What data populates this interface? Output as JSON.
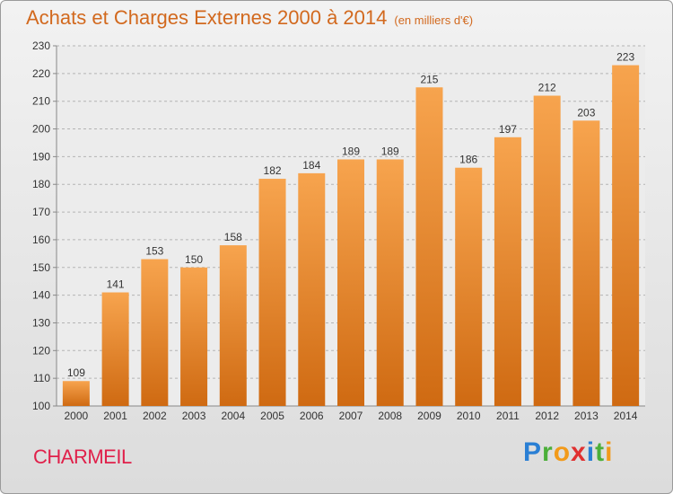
{
  "header": {
    "title": "Achats et Charges Externes 2000 à 2014",
    "subtitle": "(en milliers d'€)"
  },
  "footer": {
    "city": "CHARMEIL",
    "brand_letters": [
      {
        "char": "P",
        "color": "#2a7fd4"
      },
      {
        "char": "r",
        "color": "#4caf3a"
      },
      {
        "char": "o",
        "color": "#f29a1a"
      },
      {
        "char": "x",
        "color": "#e03030"
      },
      {
        "char": "i",
        "color": "#2a7fd4"
      },
      {
        "char": "t",
        "color": "#4caf3a"
      },
      {
        "char": "i",
        "color": "#f29a1a"
      }
    ]
  },
  "colors": {
    "title": "#d2691e",
    "city": "#e0204a",
    "bar_light": "#f7a44e",
    "bar_dark": "#cf6a12",
    "grid": "#b4b4b4",
    "axis_text": "#333333"
  },
  "chart_data": {
    "type": "bar",
    "categories": [
      "2000",
      "2001",
      "2002",
      "2003",
      "2004",
      "2005",
      "2006",
      "2007",
      "2008",
      "2009",
      "2010",
      "2011",
      "2012",
      "2013",
      "2014"
    ],
    "values": [
      109,
      141,
      153,
      150,
      158,
      182,
      184,
      189,
      189,
      215,
      186,
      197,
      212,
      203,
      223
    ],
    "ylim": [
      100,
      230
    ],
    "yticks": [
      100,
      110,
      120,
      130,
      140,
      150,
      160,
      170,
      180,
      190,
      200,
      210,
      220,
      230
    ],
    "grid": true,
    "data_labels": true
  }
}
